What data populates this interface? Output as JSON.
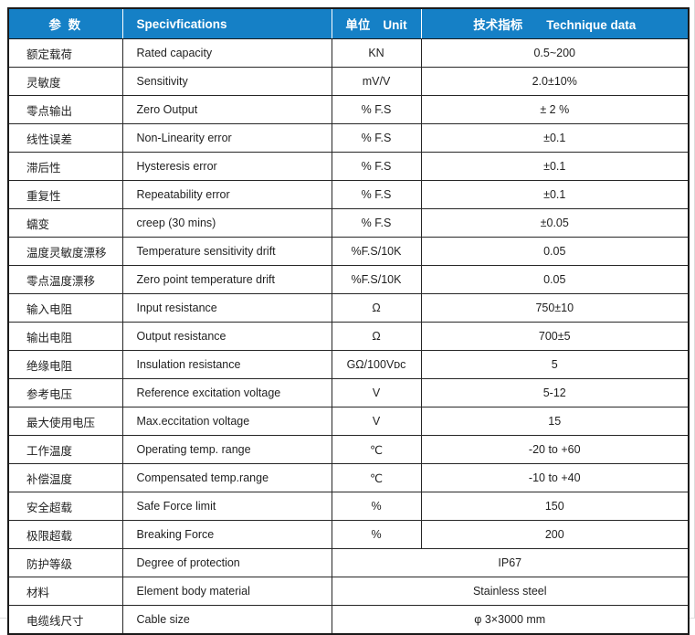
{
  "table": {
    "header": {
      "param_cn": "参  数",
      "spec_en": "Specivfications",
      "unit_cn": "单位",
      "unit_en": "Unit",
      "tech_cn": "技术指标",
      "tech_en": "Technique data"
    },
    "colors": {
      "header_bg": "#1580c6",
      "header_text": "#ffffff",
      "border": "#262626",
      "body_text": "#1f1f1f"
    },
    "rows": [
      {
        "cn": "额定载荷",
        "en": "Rated capacity",
        "unit": "KN",
        "value": "0.5~200",
        "merged": false
      },
      {
        "cn": "灵敏度",
        "en": "Sensitivity",
        "unit": "mV/V",
        "value": "2.0±10%",
        "merged": false
      },
      {
        "cn": "零点输出",
        "en": "Zero Output",
        "unit": "% F.S",
        "value": "± 2 %",
        "merged": false
      },
      {
        "cn": "线性误差",
        "en": "Non-Linearity error",
        "unit": "% F.S",
        "value": "±0.1",
        "merged": false
      },
      {
        "cn": "滞后性",
        "en": "Hysteresis error",
        "unit": "% F.S",
        "value": "±0.1",
        "merged": false
      },
      {
        "cn": "重复性",
        "en": "Repeatability error",
        "unit": "% F.S",
        "value": "±0.1",
        "merged": false
      },
      {
        "cn": "蠕变",
        "en": "creep (30 mins)",
        "unit": "% F.S",
        "value": "±0.05",
        "merged": false
      },
      {
        "cn": "温度灵敏度漂移",
        "en": "Temperature sensitivity drift",
        "unit": "%F.S/10K",
        "value": "0.05",
        "merged": false
      },
      {
        "cn": "零点温度漂移",
        "en": "Zero point temperature drift",
        "unit": "%F.S/10K",
        "value": "0.05",
        "merged": false
      },
      {
        "cn": "输入电阻",
        "en": "Input resistance",
        "unit": "Ω",
        "value": "750±10",
        "merged": false
      },
      {
        "cn": "输出电阻",
        "en": "Output resistance",
        "unit": "Ω",
        "value": "700±5",
        "merged": false
      },
      {
        "cn": "绝缘电阻",
        "en": "Insulation resistance",
        "unit": "GΩ/100Vᴅᴄ",
        "value": "5",
        "merged": false
      },
      {
        "cn": "参考电压",
        "en": "Reference excitation voltage",
        "unit": "V",
        "value": "5-12",
        "merged": false
      },
      {
        "cn": "最大使用电压",
        "en": "Max.eccitation voltage",
        "unit": "V",
        "value": "15",
        "merged": false
      },
      {
        "cn": "工作温度",
        "en": "Operating temp. range",
        "unit": "℃",
        "value": "-20 to +60",
        "merged": false
      },
      {
        "cn": "补偿温度",
        "en": "Compensated temp.range",
        "unit": "℃",
        "value": "-10 to +40",
        "merged": false
      },
      {
        "cn": "安全超载",
        "en": "Safe Force limit",
        "unit": "%",
        "value": "150",
        "merged": false
      },
      {
        "cn": "极限超载",
        "en": "Breaking Force",
        "unit": "%",
        "value": "200",
        "merged": false
      },
      {
        "cn": "防护等级",
        "en": "Degree of protection",
        "unit": "",
        "value": "IP67",
        "merged": true
      },
      {
        "cn": "材料",
        "en": "Element body material",
        "unit": "",
        "value": "Stainless steel",
        "merged": true
      },
      {
        "cn": "电缆线尺寸",
        "en": "Cable size",
        "unit": "",
        "value": "φ 3×3000 mm",
        "merged": true
      }
    ]
  }
}
